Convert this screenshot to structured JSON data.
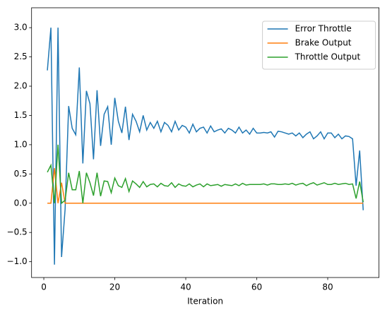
{
  "chart_data": {
    "type": "line",
    "x": [
      1,
      2,
      3,
      4,
      5,
      6,
      7,
      8,
      9,
      10,
      11,
      12,
      13,
      14,
      15,
      16,
      17,
      18,
      19,
      20,
      21,
      22,
      23,
      24,
      25,
      26,
      27,
      28,
      29,
      30,
      31,
      32,
      33,
      34,
      35,
      36,
      37,
      38,
      39,
      40,
      41,
      42,
      43,
      44,
      45,
      46,
      47,
      48,
      49,
      50,
      51,
      52,
      53,
      54,
      55,
      56,
      57,
      58,
      59,
      60,
      61,
      62,
      63,
      64,
      65,
      66,
      67,
      68,
      69,
      70,
      71,
      72,
      73,
      74,
      75,
      76,
      77,
      78,
      79,
      80,
      81,
      82,
      83,
      84,
      85,
      86,
      87,
      88,
      89,
      90
    ],
    "series": [
      {
        "name": "Error Throttle",
        "color": "#1f77b4",
        "values": [
          2.27,
          3.0,
          -1.05,
          3.0,
          -0.92,
          -0.1,
          1.66,
          1.28,
          1.17,
          2.32,
          0.68,
          1.92,
          1.7,
          0.75,
          1.93,
          0.98,
          1.52,
          1.65,
          1.0,
          1.8,
          1.4,
          1.2,
          1.65,
          1.08,
          1.52,
          1.4,
          1.22,
          1.5,
          1.25,
          1.38,
          1.28,
          1.4,
          1.22,
          1.38,
          1.33,
          1.22,
          1.4,
          1.25,
          1.33,
          1.3,
          1.2,
          1.35,
          1.22,
          1.28,
          1.3,
          1.2,
          1.32,
          1.22,
          1.25,
          1.27,
          1.2,
          1.28,
          1.25,
          1.2,
          1.3,
          1.2,
          1.25,
          1.18,
          1.28,
          1.2,
          1.2,
          1.21,
          1.2,
          1.22,
          1.13,
          1.23,
          1.22,
          1.2,
          1.18,
          1.2,
          1.15,
          1.2,
          1.12,
          1.18,
          1.22,
          1.1,
          1.15,
          1.22,
          1.1,
          1.2,
          1.2,
          1.12,
          1.18,
          1.1,
          1.15,
          1.14,
          1.1,
          0.3,
          0.9,
          -0.12
        ]
      },
      {
        "name": "Brake Output",
        "color": "#ff7f0e",
        "values": [
          0,
          0,
          0.6,
          0,
          0.35,
          0,
          0,
          0,
          0,
          0,
          0,
          0,
          0,
          0,
          0,
          0,
          0,
          0,
          0,
          0,
          0,
          0,
          0,
          0,
          0,
          0,
          0,
          0,
          0,
          0,
          0,
          0,
          0,
          0,
          0,
          0,
          0,
          0,
          0,
          0,
          0,
          0,
          0,
          0,
          0,
          0,
          0,
          0,
          0,
          0,
          0,
          0,
          0,
          0,
          0,
          0,
          0,
          0,
          0,
          0,
          0,
          0,
          0,
          0,
          0,
          0,
          0,
          0,
          0,
          0,
          0,
          0,
          0,
          0,
          0,
          0,
          0,
          0,
          0,
          0,
          0,
          0,
          0,
          0,
          0,
          0,
          0,
          0,
          0,
          0
        ]
      },
      {
        "name": "Throttle Output",
        "color": "#2ca02c",
        "values": [
          0.53,
          0.65,
          0,
          1.0,
          0,
          0.05,
          0.52,
          0.23,
          0.23,
          0.55,
          0,
          0.52,
          0.35,
          0.13,
          0.52,
          0.12,
          0.38,
          0.37,
          0.18,
          0.43,
          0.3,
          0.27,
          0.42,
          0.2,
          0.38,
          0.33,
          0.27,
          0.37,
          0.28,
          0.32,
          0.33,
          0.28,
          0.34,
          0.3,
          0.29,
          0.35,
          0.27,
          0.33,
          0.3,
          0.29,
          0.33,
          0.28,
          0.31,
          0.33,
          0.28,
          0.33,
          0.3,
          0.31,
          0.32,
          0.29,
          0.32,
          0.31,
          0.3,
          0.33,
          0.3,
          0.34,
          0.31,
          0.32,
          0.32,
          0.32,
          0.32,
          0.33,
          0.31,
          0.33,
          0.33,
          0.32,
          0.32,
          0.33,
          0.32,
          0.34,
          0.31,
          0.33,
          0.34,
          0.3,
          0.33,
          0.35,
          0.31,
          0.33,
          0.35,
          0.32,
          0.32,
          0.34,
          0.32,
          0.33,
          0.34,
          0.32,
          0.33,
          0.08,
          0.37,
          0.02
        ]
      }
    ],
    "xlabel": "Iteration",
    "xlim": [
      -3.45,
      94.45
    ],
    "xticks": [
      0,
      20,
      40,
      60,
      80
    ],
    "ylim": [
      -1.27,
      3.34
    ],
    "yticks": [
      {
        "value": -1,
        "label": "−1.0"
      },
      {
        "value": -0.5,
        "label": "−0.5"
      },
      {
        "value": 0,
        "label": "0.0"
      },
      0.5,
      {
        "value": 1,
        "label": "1.0"
      },
      1.5,
      {
        "value": 2,
        "label": "2.0"
      },
      2.5,
      {
        "value": 3,
        "label": "3.0"
      }
    ],
    "legend": "upper right"
  }
}
